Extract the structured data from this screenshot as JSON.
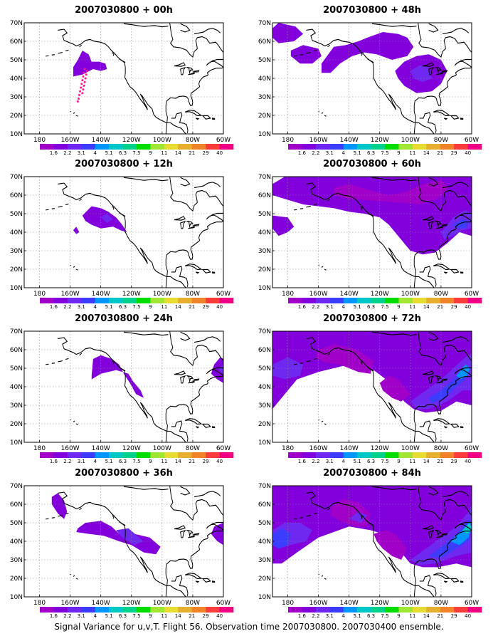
{
  "page": {
    "caption": "Signal Variance for u,v,T. Flight 56. Observation time 2007030800. 2007030400 ensemble."
  },
  "colorbar": {
    "labels": [
      "1.6",
      "2.2",
      "3.1",
      "4",
      "5.1",
      "6.3",
      "7.5",
      "9",
      "11",
      "14",
      "21",
      "29",
      "40"
    ],
    "colors": [
      "#a000c8",
      "#8200dc",
      "#6e28f0",
      "#3c3cff",
      "#0096ff",
      "#00c8c8",
      "#00d28c",
      "#00dc00",
      "#a0e632",
      "#e6dc32",
      "#e6af2d",
      "#f08228",
      "#fa3c3c",
      "#f00082"
    ]
  },
  "axes": {
    "lon_labels": [
      "180",
      "160W",
      "140W",
      "120W",
      "100W",
      "80W",
      "60W"
    ],
    "lat_labels": [
      "10N",
      "20N",
      "30N",
      "40N",
      "50N",
      "60N",
      "70N"
    ]
  },
  "panels": [
    {
      "id": "p00",
      "title": "2007030800 + 00h",
      "lead_hours": 0
    },
    {
      "id": "p48",
      "title": "2007030800 + 48h",
      "lead_hours": 48
    },
    {
      "id": "p12",
      "title": "2007030800 + 12h",
      "lead_hours": 12
    },
    {
      "id": "p60",
      "title": "2007030800 + 60h",
      "lead_hours": 60
    },
    {
      "id": "p24",
      "title": "2007030800 + 24h",
      "lead_hours": 24
    },
    {
      "id": "p72",
      "title": "2007030800 + 72h",
      "lead_hours": 72
    },
    {
      "id": "p36",
      "title": "2007030800 + 36h",
      "lead_hours": 36
    },
    {
      "id": "p84",
      "title": "2007030800 + 84h",
      "lead_hours": 84
    }
  ],
  "flight_track": {
    "panel": "p00",
    "points": [
      [
        -150.5,
        45
      ],
      [
        -151,
        43
      ],
      [
        -151.5,
        41
      ],
      [
        -152,
        39
      ],
      [
        -152.5,
        37
      ],
      [
        -153,
        35
      ],
      [
        -153.5,
        33
      ],
      [
        -154,
        31
      ],
      [
        -154.5,
        29
      ],
      [
        -155,
        27.5
      ],
      [
        -149,
        44
      ],
      [
        -149.5,
        42
      ],
      [
        -150,
        40
      ],
      [
        -150.5,
        38
      ],
      [
        -151,
        36
      ],
      [
        -151.5,
        34
      ],
      [
        -152,
        32
      ]
    ]
  }
}
